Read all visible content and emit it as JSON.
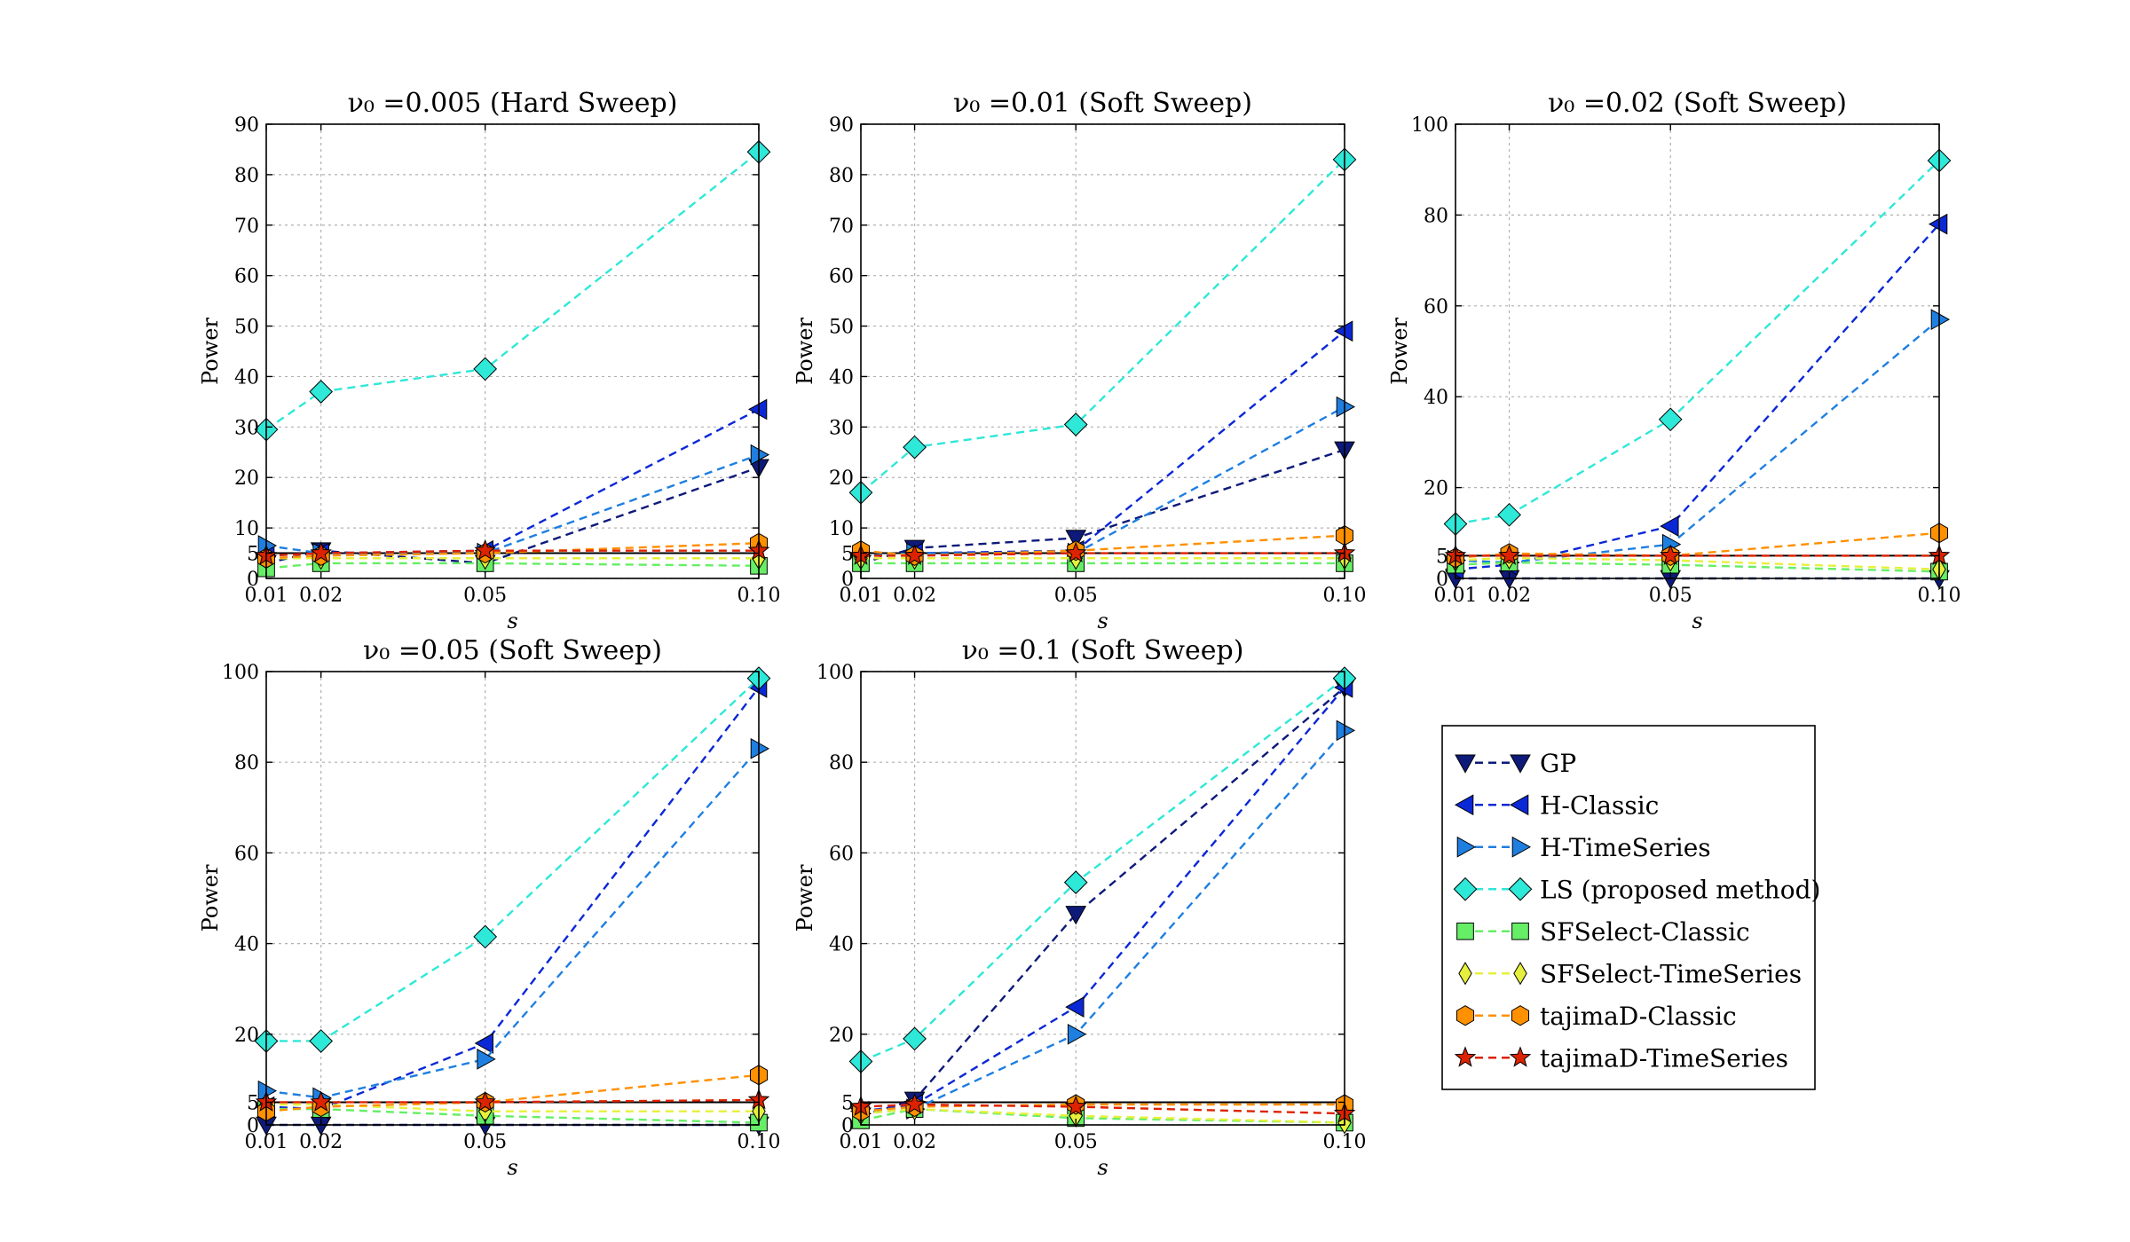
{
  "series_styles": [
    {
      "name": "GP",
      "color": "#0d1a7a",
      "marker": "tri-down"
    },
    {
      "name": "H-Classic",
      "color": "#0b28d6",
      "marker": "tri-left"
    },
    {
      "name": "H-TimeSeries",
      "color": "#1f7fe0",
      "marker": "tri-right"
    },
    {
      "name": "LS (proposed method)",
      "color": "#2ee8d8",
      "marker": "diamond"
    },
    {
      "name": "SFSelect-Classic",
      "color": "#66ee66",
      "marker": "square"
    },
    {
      "name": "SFSelect-TimeSeries",
      "color": "#e6f03c",
      "marker": "thin-diamond"
    },
    {
      "name": "tajimaD-Classic",
      "color": "#ff9000",
      "marker": "hexagon"
    },
    {
      "name": "tajimaD-TimeSeries",
      "color": "#dd2200",
      "marker": "star"
    }
  ],
  "legend": {
    "placement": "lower-right empty panel"
  },
  "chart_data": [
    {
      "type": "line",
      "title": "ν₀ =0.005 (Hard Sweep)",
      "xlabel": "s",
      "ylabel": "Power",
      "x": [
        0.01,
        0.02,
        0.05,
        0.1
      ],
      "x_ticks": [
        "0.01",
        "0.02",
        "0.05",
        "0.10"
      ],
      "ylim": [
        0,
        90
      ],
      "y_ticks": [
        0,
        5,
        10,
        20,
        30,
        40,
        50,
        60,
        70,
        80,
        90
      ],
      "grid": true,
      "reference_line": 5,
      "series": [
        {
          "name": "GP",
          "values": [
            3,
            5.5,
            3,
            22
          ]
        },
        {
          "name": "H-Classic",
          "values": [
            4.5,
            5,
            5.5,
            33.5
          ]
        },
        {
          "name": "H-TimeSeries",
          "values": [
            6.5,
            5,
            5,
            24.5
          ]
        },
        {
          "name": "LS (proposed method)",
          "values": [
            29.5,
            37,
            41.5,
            84.5
          ]
        },
        {
          "name": "SFSelect-Classic",
          "values": [
            2,
            3,
            3,
            2.5
          ]
        },
        {
          "name": "SFSelect-TimeSeries",
          "values": [
            4,
            4,
            4,
            4
          ]
        },
        {
          "name": "tajimaD-Classic",
          "values": [
            4,
            4.5,
            5,
            7
          ]
        },
        {
          "name": "tajimaD-TimeSeries",
          "values": [
            4.5,
            5,
            5.5,
            5.5
          ]
        }
      ]
    },
    {
      "type": "line",
      "title": "ν₀ =0.01 (Soft Sweep)",
      "xlabel": "s",
      "ylabel": "Power",
      "x": [
        0.01,
        0.02,
        0.05,
        0.1
      ],
      "x_ticks": [
        "0.01",
        "0.02",
        "0.05",
        "0.10"
      ],
      "ylim": [
        0,
        90
      ],
      "y_ticks": [
        0,
        5,
        10,
        20,
        30,
        40,
        50,
        60,
        70,
        80,
        90
      ],
      "grid": true,
      "reference_line": 5,
      "series": [
        {
          "name": "GP",
          "values": [
            3,
            6,
            8,
            25.5
          ]
        },
        {
          "name": "H-Classic",
          "values": [
            4.5,
            5,
            5.5,
            49
          ]
        },
        {
          "name": "H-TimeSeries",
          "values": [
            4.5,
            5,
            5,
            34
          ]
        },
        {
          "name": "LS (proposed method)",
          "values": [
            17,
            26,
            30.5,
            83
          ]
        },
        {
          "name": "SFSelect-Classic",
          "values": [
            3,
            3,
            3,
            3
          ]
        },
        {
          "name": "SFSelect-TimeSeries",
          "values": [
            4,
            4,
            4,
            4
          ]
        },
        {
          "name": "tajimaD-Classic",
          "values": [
            5.5,
            4.5,
            5.5,
            8.5
          ]
        },
        {
          "name": "tajimaD-TimeSeries",
          "values": [
            4.5,
            4.5,
            5,
            5
          ]
        }
      ]
    },
    {
      "type": "line",
      "title": "ν₀ =0.02 (Soft Sweep)",
      "xlabel": "s",
      "ylabel": "Power",
      "x": [
        0.01,
        0.02,
        0.05,
        0.1
      ],
      "x_ticks": [
        "0.01",
        "0.02",
        "0.05",
        "0.10"
      ],
      "ylim": [
        0,
        100
      ],
      "y_ticks": [
        0,
        5,
        20,
        40,
        60,
        80,
        100
      ],
      "grid": true,
      "reference_line": 5,
      "series": [
        {
          "name": "GP",
          "values": [
            0,
            0,
            0,
            0
          ]
        },
        {
          "name": "H-Classic",
          "values": [
            2,
            3,
            11.5,
            78
          ]
        },
        {
          "name": "H-TimeSeries",
          "values": [
            4,
            3.5,
            7.5,
            57
          ]
        },
        {
          "name": "LS (proposed method)",
          "values": [
            12,
            14,
            35,
            92
          ]
        },
        {
          "name": "SFSelect-Classic",
          "values": [
            3,
            3.5,
            3,
            1.5
          ]
        },
        {
          "name": "SFSelect-TimeSeries",
          "values": [
            4,
            4.5,
            4,
            2
          ]
        },
        {
          "name": "tajimaD-Classic",
          "values": [
            4.5,
            5.5,
            5,
            10
          ]
        },
        {
          "name": "tajimaD-TimeSeries",
          "values": [
            5,
            5,
            5,
            5
          ]
        }
      ]
    },
    {
      "type": "line",
      "title": "ν₀ =0.05 (Soft Sweep)",
      "xlabel": "s",
      "ylabel": "Power",
      "x": [
        0.01,
        0.02,
        0.05,
        0.1
      ],
      "x_ticks": [
        "0.01",
        "0.02",
        "0.05",
        "0.10"
      ],
      "ylim": [
        0,
        100
      ],
      "y_ticks": [
        0,
        5,
        20,
        40,
        60,
        80,
        100
      ],
      "grid": true,
      "reference_line": 5,
      "series": [
        {
          "name": "GP",
          "values": [
            0,
            0,
            0,
            0
          ]
        },
        {
          "name": "H-Classic",
          "values": [
            4,
            3.5,
            18,
            96.5
          ]
        },
        {
          "name": "H-TimeSeries",
          "values": [
            7.5,
            6,
            14.5,
            83
          ]
        },
        {
          "name": "LS (proposed method)",
          "values": [
            18.5,
            18.5,
            41.5,
            98.5
          ]
        },
        {
          "name": "SFSelect-Classic",
          "values": [
            3.5,
            3.5,
            2,
            0.5
          ]
        },
        {
          "name": "SFSelect-TimeSeries",
          "values": [
            4.5,
            4.5,
            3,
            3
          ]
        },
        {
          "name": "tajimaD-Classic",
          "values": [
            3,
            4,
            5,
            11
          ]
        },
        {
          "name": "tajimaD-TimeSeries",
          "values": [
            5,
            5,
            5,
            5.5
          ]
        }
      ]
    },
    {
      "type": "line",
      "title": "ν₀ =0.1 (Soft Sweep)",
      "xlabel": "s",
      "ylabel": "Power",
      "x": [
        0.01,
        0.02,
        0.05,
        0.1
      ],
      "x_ticks": [
        "0.01",
        "0.02",
        "0.05",
        "0.10"
      ],
      "ylim": [
        0,
        100
      ],
      "y_ticks": [
        0,
        5,
        20,
        40,
        60,
        80,
        100
      ],
      "grid": true,
      "reference_line": 5,
      "series": [
        {
          "name": "GP",
          "values": [
            2,
            5.5,
            46.5,
            96.5
          ]
        },
        {
          "name": "H-Classic",
          "values": [
            3,
            4.5,
            26,
            96.5
          ]
        },
        {
          "name": "H-TimeSeries",
          "values": [
            2.5,
            3.5,
            20,
            87
          ]
        },
        {
          "name": "LS (proposed method)",
          "values": [
            14,
            19,
            53.5,
            98.5
          ]
        },
        {
          "name": "SFSelect-Classic",
          "values": [
            1,
            3.5,
            1.5,
            0.5
          ]
        },
        {
          "name": "SFSelect-TimeSeries",
          "values": [
            2.5,
            3.5,
            2,
            0.5
          ]
        },
        {
          "name": "tajimaD-Classic",
          "values": [
            3,
            4,
            4.5,
            4.5
          ]
        },
        {
          "name": "tajimaD-TimeSeries",
          "values": [
            4,
            4.5,
            4,
            2.5
          ]
        }
      ]
    }
  ]
}
